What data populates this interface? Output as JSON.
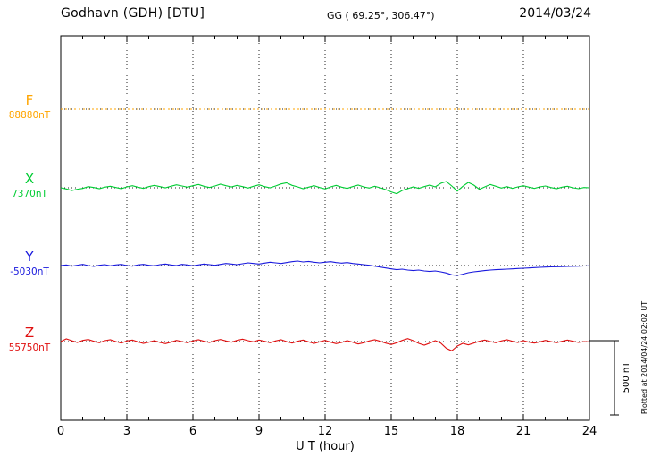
{
  "header": {
    "station": "Godhavn (GDH)  [DTU]",
    "gg": "GG ( 69.25°, 306.47°)",
    "date": "2014/03/24"
  },
  "axis": {
    "xlabel": "U T (hour)"
  },
  "scale_bar": {
    "label": "500 nT",
    "value_nt": 500
  },
  "footer_note": "Plotted at 2014/04/24 02:02 UT",
  "chart_data": {
    "type": "line",
    "title": "Godhavn (GDH) [DTU] magnetogram 2014/03/24",
    "xlabel": "U T (hour)",
    "x_range": [
      0,
      24
    ],
    "x_ticks": [
      0,
      3,
      6,
      9,
      12,
      15,
      18,
      21,
      24
    ],
    "grid": "dotted vertical at 3-hour intervals, dotted horizontal baselines per component",
    "scale_bar_nt": 500,
    "value_units": "nT deviation from component baseline, sampled every 0.25 hour",
    "series": [
      {
        "name": "F",
        "baseline_label": "88880nT",
        "baseline_nt": 88880,
        "color": "#FFA500",
        "values": [
          0,
          0
        ]
      },
      {
        "name": "X",
        "baseline_label": "7370nT",
        "baseline_nt": 7370,
        "color": "#00CC33",
        "values": [
          0,
          -8,
          -18,
          -10,
          -4,
          8,
          2,
          -6,
          4,
          10,
          2,
          -6,
          6,
          14,
          4,
          -4,
          8,
          16,
          8,
          0,
          10,
          20,
          12,
          4,
          14,
          22,
          10,
          2,
          12,
          24,
          14,
          6,
          16,
          8,
          -2,
          10,
          20,
          8,
          0,
          12,
          26,
          34,
          16,
          6,
          -6,
          4,
          14,
          2,
          -8,
          6,
          16,
          4,
          -4,
          8,
          18,
          6,
          -2,
          10,
          0,
          -12,
          -28,
          -40,
          -18,
          -6,
          6,
          -4,
          8,
          18,
          6,
          30,
          42,
          12,
          -22,
          10,
          36,
          18,
          -10,
          6,
          22,
          10,
          -2,
          8,
          -4,
          6,
          14,
          4,
          -4,
          6,
          12,
          2,
          -6,
          4,
          10,
          0,
          -6,
          2,
          0
        ]
      },
      {
        "name": "Y",
        "baseline_label": "-5030nT",
        "baseline_nt": -5030,
        "color": "#1818DD",
        "values": [
          0,
          4,
          -4,
          2,
          8,
          0,
          -6,
          2,
          6,
          -2,
          4,
          8,
          0,
          -4,
          4,
          8,
          2,
          -2,
          6,
          10,
          4,
          0,
          8,
          4,
          -2,
          4,
          10,
          6,
          2,
          8,
          14,
          10,
          6,
          12,
          18,
          14,
          10,
          16,
          22,
          18,
          14,
          20,
          26,
          30,
          24,
          28,
          22,
          18,
          22,
          26,
          20,
          16,
          20,
          14,
          10,
          6,
          2,
          -4,
          -10,
          -16,
          -22,
          -28,
          -24,
          -30,
          -34,
          -30,
          -36,
          -40,
          -36,
          -42,
          -50,
          -62,
          -66,
          -58,
          -48,
          -42,
          -38,
          -34,
          -30,
          -28,
          -26,
          -24,
          -22,
          -20,
          -18,
          -16,
          -14,
          -12,
          -10,
          -9,
          -8,
          -7,
          -6,
          -5,
          -4,
          -3,
          -2
        ]
      },
      {
        "name": "Z",
        "baseline_label": "55750nT",
        "baseline_nt": 55750,
        "color": "#E01010",
        "values": [
          0,
          18,
          6,
          -6,
          8,
          14,
          2,
          -8,
          6,
          12,
          0,
          -10,
          4,
          10,
          -2,
          -12,
          -4,
          6,
          -6,
          -14,
          -4,
          8,
          0,
          -8,
          4,
          12,
          2,
          -6,
          6,
          14,
          4,
          -4,
          8,
          16,
          6,
          -2,
          10,
          2,
          -8,
          4,
          12,
          0,
          -10,
          2,
          10,
          -2,
          -12,
          -2,
          8,
          -4,
          -14,
          -6,
          6,
          -4,
          -16,
          -8,
          4,
          12,
          2,
          -10,
          -20,
          -8,
          8,
          20,
          6,
          -12,
          -24,
          -10,
          6,
          -10,
          -45,
          -62,
          -30,
          -12,
          -22,
          -10,
          2,
          10,
          0,
          -8,
          4,
          12,
          2,
          -6,
          6,
          -4,
          -10,
          -2,
          8,
          0,
          -8,
          2,
          10,
          2,
          -6,
          0,
          -2
        ]
      }
    ]
  }
}
